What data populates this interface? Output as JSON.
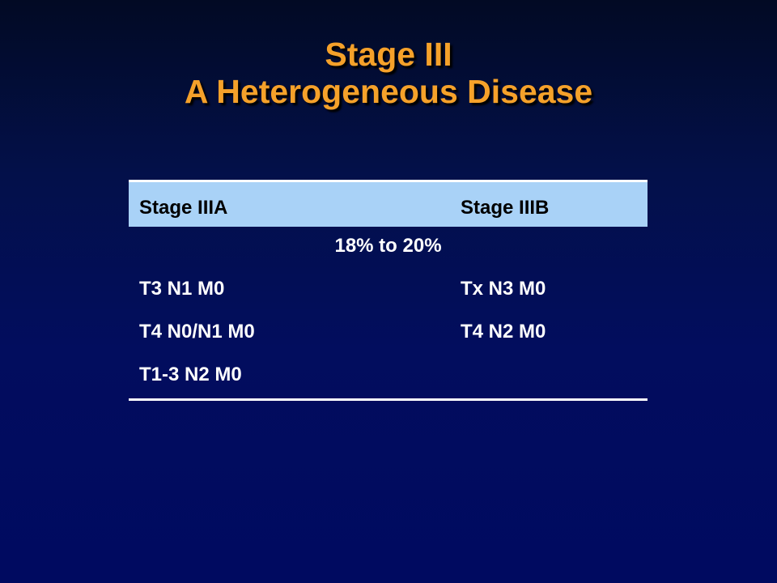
{
  "title": {
    "line1": "Stage III",
    "line2": "A Heterogeneous Disease"
  },
  "table": {
    "headers": [
      "Stage IIIA",
      "Stage IIIB"
    ],
    "span_row": "18% to 20%",
    "rows": [
      [
        "T3 N1 M0",
        "Tx N3 M0"
      ],
      [
        "T4 N0/N1 M0",
        "T4 N2 M0"
      ],
      [
        "T1-3 N2 M0",
        ""
      ]
    ]
  },
  "colors": {
    "title": "#f5a12a",
    "header_bg": "#a9d2f7",
    "background": "#020d5e",
    "rule": "#ffffff"
  }
}
